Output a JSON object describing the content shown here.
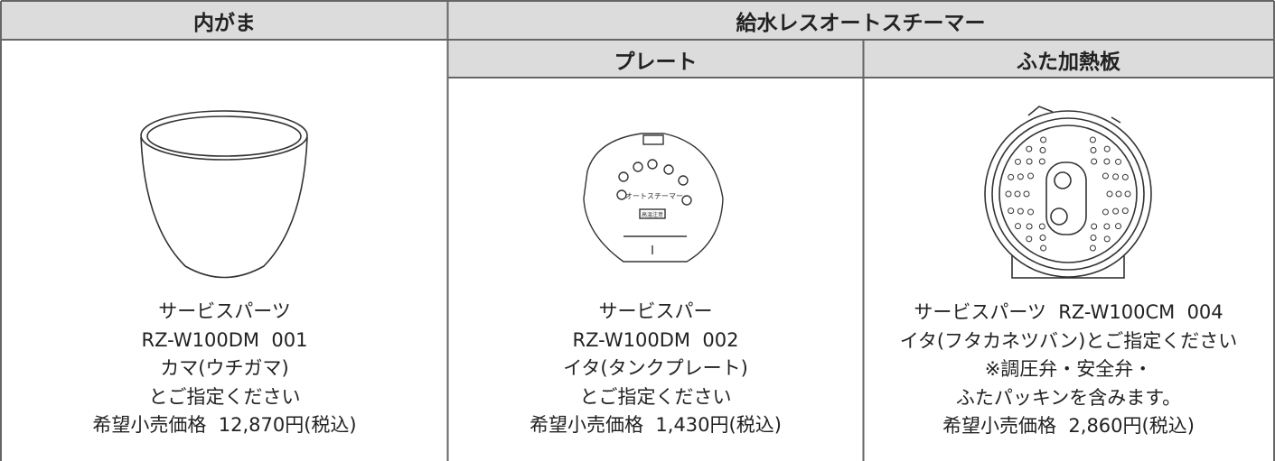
{
  "table": {
    "header": {
      "inner_pot": "内がま",
      "steamer": "給水レスオートスチーマー",
      "plate": "プレート",
      "lid_plate": "ふた加熱板"
    },
    "cells": [
      {
        "lines": [
          "サービスパーツ",
          "RZ-W100DM  001",
          "カマ(ウチガマ)",
          "とご指定ください",
          "希望小売価格  12,870円(税込)"
        ]
      },
      {
        "image_labels": [
          "オートスチーマー",
          "高温注意"
        ],
        "lines": [
          "サービスパー",
          "RZ-W100DM  002",
          "イタ(タンクプレート)",
          "とご指定ください",
          "希望小売価格  1,430円(税込)"
        ]
      },
      {
        "lines": [
          "サービスパーツ  RZ-W100CM  004",
          "イタ(フタカネツバン)とご指定ください",
          "※調圧弁・安全弁・",
          "ふたパッキンを含みます。",
          "希望小売価格  2,860円(税込)"
        ]
      }
    ]
  }
}
